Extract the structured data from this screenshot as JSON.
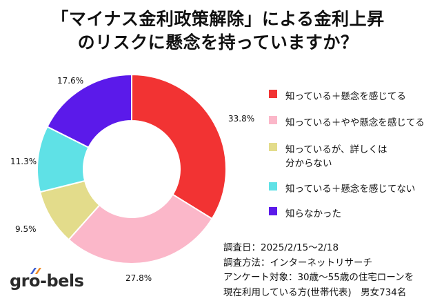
{
  "title_line1": "「マイナス金利政策解除」による金利上昇",
  "title_line2": "のリスクに懸念を持っていますか？",
  "chart_data": {
    "type": "pie",
    "donut": true,
    "categories": [
      "知っている＋懸念を感じてる",
      "知っている＋やや懸念を感じてる",
      "知っているが、詳しくは分からない",
      "知っている＋懸念を感じてない",
      "知らなかった"
    ],
    "values": [
      33.8,
      27.8,
      9.5,
      11.3,
      17.6
    ],
    "data_labels": [
      "33.8%",
      "27.8%",
      "9.5%",
      "11.3%",
      "17.6%"
    ],
    "colors": [
      "#f23333",
      "#fbb7c9",
      "#e3dc8b",
      "#5fe1e6",
      "#5b1aea"
    ],
    "legend_placement": "right"
  },
  "legend": [
    {
      "label": "知っている＋懸念を感じてる"
    },
    {
      "label": "知っている＋やや懸念を感じてる"
    },
    {
      "label": "知っているが、詳しくは",
      "label2": "分からない"
    },
    {
      "label": "知っている＋懸念を感じてない"
    },
    {
      "label": "知らなかった"
    }
  ],
  "notes": [
    "調査日：2025/2/15〜2/18",
    "調査方法：インターネットリサーチ",
    "アンケート対象：30歳〜55歳の住宅ローンを",
    "現在利用している方(世帯代表)　男女734名"
  ],
  "logo": "gro-bels"
}
